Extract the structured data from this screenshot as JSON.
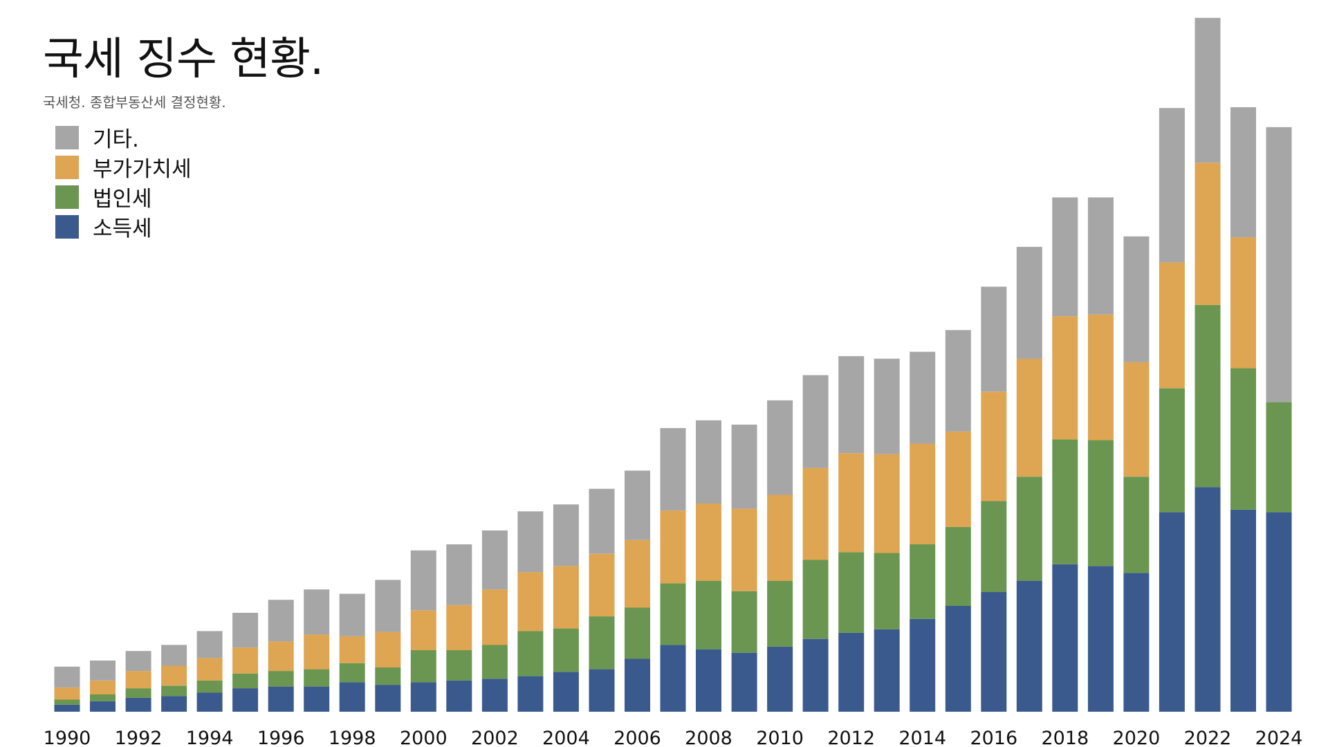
{
  "title": "국세 징수 현황.",
  "subtitle": "국세청. 종합부동산세 결정현황.",
  "colors": {
    "소득세": "#3a5a8e",
    "법인세": "#6a9651",
    "부가가치세": "#dea552",
    "기타.": "#a6a6a6"
  },
  "legend": [
    {
      "label": "기타.",
      "color": "#a6a6a6"
    },
    {
      "label": "부가가치세",
      "color": "#dea552"
    },
    {
      "label": "법인세",
      "color": "#6a9651"
    },
    {
      "label": "소득세",
      "color": "#3a5a8e"
    }
  ],
  "chart_data": {
    "type": "bar",
    "stacked": true,
    "categories": [
      "1990",
      "1991",
      "1992",
      "1993",
      "1994",
      "1995",
      "1996",
      "1997",
      "1998",
      "1999",
      "2000",
      "2001",
      "2002",
      "2003",
      "2004",
      "2005",
      "2006",
      "2007",
      "2008",
      "2009",
      "2010",
      "2011",
      "2012",
      "2013",
      "2014",
      "2015",
      "2016",
      "2017",
      "2018",
      "2019",
      "2020",
      "2021",
      "2022",
      "2023",
      "2024"
    ],
    "tick_labels": [
      "1990",
      "1992",
      "1994",
      "1996",
      "1998",
      "2000",
      "2002",
      "2004",
      "2006",
      "2008",
      "2010",
      "2012",
      "2014",
      "2016",
      "2018",
      "2020",
      "2022",
      "2024"
    ],
    "ylim": [
      0,
      400
    ],
    "series": [
      {
        "name": "소득세",
        "color": "#3a5a8e",
        "values": [
          4,
          6,
          8,
          9,
          11,
          13.5,
          14.5,
          14.5,
          17,
          15.5,
          17,
          18,
          19,
          20.5,
          23,
          24.5,
          30.5,
          38.5,
          36,
          34,
          37.5,
          42,
          45.5,
          47.5,
          53.5,
          61,
          69,
          75.5,
          85,
          84,
          80,
          115,
          129.5,
          116.5,
          115
        ]
      },
      {
        "name": "법인세",
        "color": "#6a9651",
        "values": [
          3,
          4,
          5.5,
          6,
          7,
          8.5,
          9,
          10,
          11,
          10,
          18.5,
          17.5,
          19.5,
          26,
          25,
          30.5,
          29.5,
          35.5,
          39.5,
          35.5,
          38,
          45.5,
          46.5,
          44,
          43,
          45.5,
          52.5,
          60,
          72,
          72.5,
          55.5,
          71.5,
          105,
          81.5,
          63.5
        ]
      },
      {
        "name": "부가가치세",
        "color": "#dea552",
        "values": [
          7,
          8,
          10,
          11.5,
          13,
          15,
          17,
          20,
          15.5,
          20.5,
          23,
          26,
          32,
          34,
          36,
          36,
          39,
          42,
          44.5,
          47.5,
          49.5,
          53,
          57,
          57,
          58,
          55,
          63,
          68,
          71,
          72.5,
          66,
          72.5,
          82,
          75.5,
          0
        ]
      },
      {
        "name": "기타.",
        "color": "#a6a6a6",
        "values": [
          12,
          11.5,
          11.5,
          12,
          15.5,
          20,
          24,
          26,
          24.5,
          30,
          34.5,
          35,
          34,
          35,
          35.5,
          37.5,
          40,
          47.5,
          48,
          48.5,
          54.5,
          53.5,
          56,
          55,
          53,
          58.5,
          60.5,
          64.5,
          68.5,
          67.5,
          72.5,
          89,
          83.5,
          75,
          158.5
        ]
      }
    ]
  }
}
